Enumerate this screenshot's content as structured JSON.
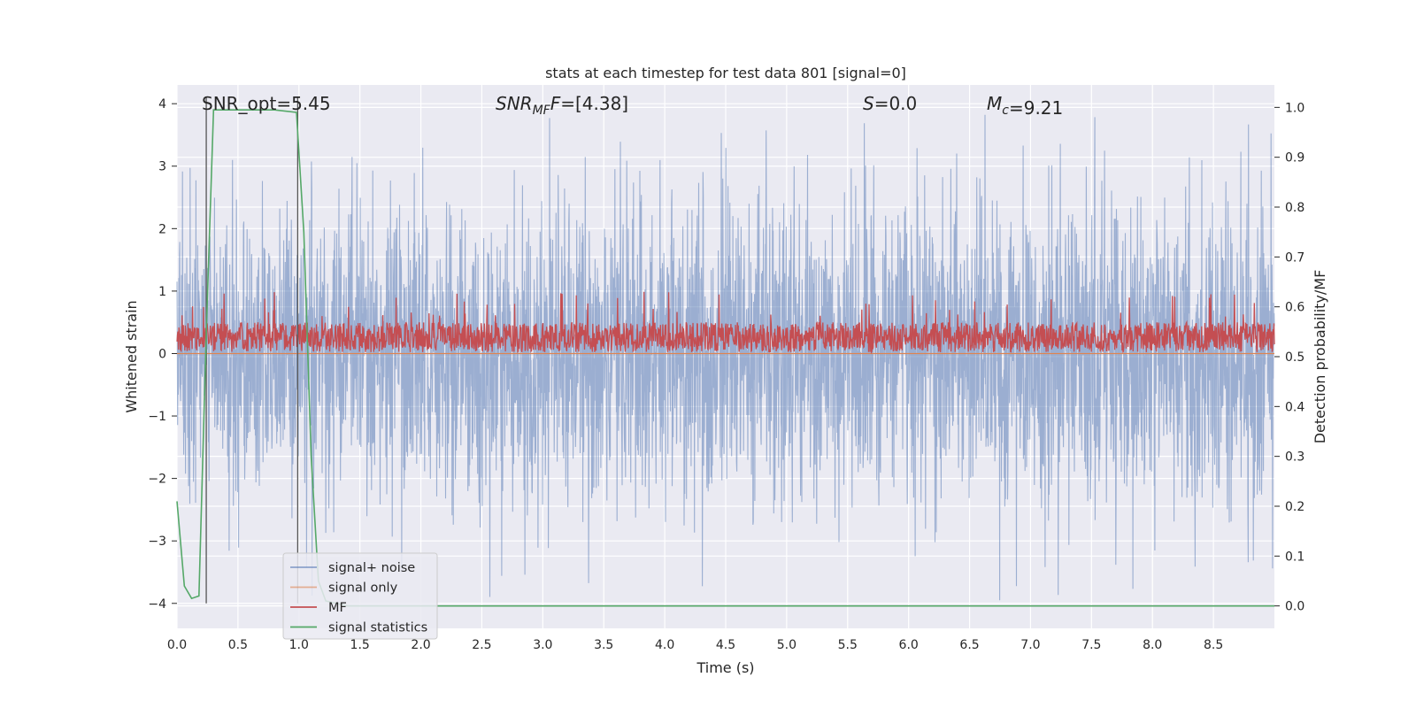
{
  "chart_data": {
    "type": "line",
    "title": "stats at each timestep for test data 801 [signal=0]",
    "xlabel": "Time (s)",
    "ylabel": "Whitened strain",
    "ylabel_right": "Detection probability/MF",
    "xlim": [
      0.0,
      9.0
    ],
    "ylim": [
      -4.4,
      4.3
    ],
    "ylim_right": [
      -0.045,
      1.045
    ],
    "x_ticks": [
      0.0,
      0.5,
      1.0,
      1.5,
      2.0,
      2.5,
      3.0,
      3.5,
      4.0,
      4.5,
      5.0,
      5.5,
      6.0,
      6.5,
      7.0,
      7.5,
      8.0,
      8.5
    ],
    "x_tick_labels": [
      "0.0",
      "0.5",
      "1.0",
      "1.5",
      "2.0",
      "2.5",
      "3.0",
      "3.5",
      "4.0",
      "4.5",
      "5.0",
      "5.5",
      "6.0",
      "6.5",
      "7.0",
      "7.5",
      "8.0",
      "8.5"
    ],
    "y_ticks": [
      4,
      3,
      2,
      1,
      0,
      -1,
      -2,
      -3,
      -4
    ],
    "y_tick_labels": [
      "4",
      "3",
      "2",
      "1",
      "0",
      "−1",
      "−2",
      "−3",
      "−4"
    ],
    "y_right_ticks": [
      1.0,
      0.9,
      0.8,
      0.7,
      0.6,
      0.5,
      0.4,
      0.3,
      0.2,
      0.1,
      0.0
    ],
    "y_right_tick_labels": [
      "1.0",
      "0.9",
      "0.8",
      "0.7",
      "0.6",
      "0.5",
      "0.4",
      "0.3",
      "0.2",
      "0.1",
      "0.0"
    ],
    "annotations": [
      {
        "label": "SNR_opt",
        "value": "=5.45",
        "italic": false,
        "sub": ""
      },
      {
        "label": "SNR",
        "sub": "MF",
        "tail": "F",
        "value": "=[4.38]",
        "italic": true
      },
      {
        "label": "S",
        "sub": "",
        "value": "=0.0",
        "italic": true
      },
      {
        "label": "M",
        "sub": "c",
        "value": "=9.21",
        "italic": true
      }
    ],
    "vertical_markers_x": [
      0.24,
      0.99
    ],
    "grid": true,
    "legend_position": "lower-left",
    "series": [
      {
        "name": "signal+ noise",
        "color": "#4c72b0",
        "axis": "left",
        "kind": "noise",
        "envelope": 2.3,
        "peak_max": 3.95,
        "peak_min": -3.95
      },
      {
        "name": "signal only",
        "color": "#dd8452",
        "axis": "left",
        "kind": "flat",
        "value": 0.0
      },
      {
        "name": "MF",
        "color": "#c44e52",
        "axis": "right",
        "kind": "noise",
        "baseline": 0.53,
        "peak": 0.63
      },
      {
        "name": "signal statistics",
        "color": "#55a868",
        "axis": "right",
        "kind": "line",
        "x": [
          0.0,
          0.06,
          0.12,
          0.18,
          0.24,
          0.3,
          0.36,
          0.6,
          0.8,
          0.98,
          1.04,
          1.1,
          1.16,
          1.22,
          1.4,
          1.6,
          9.0
        ],
        "y": [
          0.21,
          0.04,
          0.015,
          0.02,
          0.55,
          0.995,
          0.995,
          0.995,
          0.995,
          0.99,
          0.75,
          0.3,
          0.05,
          0.01,
          0.0,
          0.0,
          0.0
        ]
      }
    ]
  }
}
